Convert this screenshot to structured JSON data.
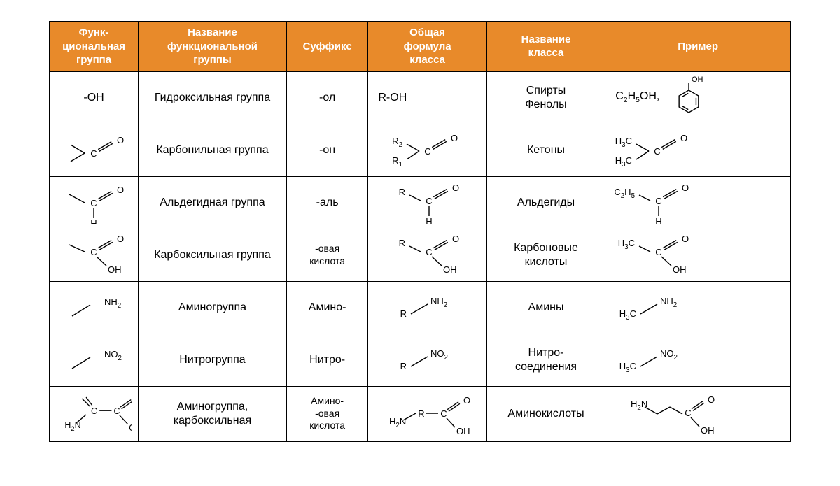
{
  "table": {
    "header_bg": "#e88a2a",
    "header_color": "#ffffff",
    "border_color": "#000000",
    "columns": [
      {
        "label": "Функ-\nциональная\nгруппа",
        "width": "12%"
      },
      {
        "label": "Название\nфункциональной\nгруппы",
        "width": "20%"
      },
      {
        "label": "Суффикс",
        "width": "11%"
      },
      {
        "label": "Общая\nформула\nкласса",
        "width": "16%"
      },
      {
        "label": "Название\nкласса",
        "width": "16%"
      },
      {
        "label": "Пример",
        "width": "25%"
      }
    ],
    "rows": [
      {
        "group": {
          "type": "text",
          "value": "-OH"
        },
        "name": "Гидроксильная группа",
        "suffix": "-ол",
        "formula": {
          "type": "text",
          "value": "R-OH",
          "align": "left"
        },
        "class": "Спирты\nФенолы",
        "example": {
          "type": "phenol",
          "prefix": "C₂H₅OH,"
        }
      },
      {
        "group": {
          "type": "ketone_frag"
        },
        "name": "Карбонильная группа",
        "suffix": "-он",
        "formula": {
          "type": "ketone",
          "r1": "R₂",
          "r2": "R₁"
        },
        "class": "Кетоны",
        "example": {
          "type": "ketone",
          "r1": "H₃C",
          "r2": "H₃C"
        }
      },
      {
        "group": {
          "type": "aldehyde_frag"
        },
        "name": "Альдегидная группа",
        "suffix": "-аль",
        "formula": {
          "type": "aldehyde",
          "r": "R"
        },
        "class": "Альдегиды",
        "example": {
          "type": "aldehyde",
          "r": "C₂H₅"
        }
      },
      {
        "group": {
          "type": "carboxyl_frag"
        },
        "name": "Карбоксильная группа",
        "suffix": "-овая\nкислота",
        "formula": {
          "type": "carboxyl",
          "r": "R"
        },
        "class": "Карбоновые\nкислоты",
        "example": {
          "type": "carboxyl",
          "r": "H₃C"
        }
      },
      {
        "group": {
          "type": "amine_frag"
        },
        "name": "Аминогруппа",
        "suffix": "Амино-",
        "formula": {
          "type": "amine",
          "r": "R"
        },
        "class": "Амины",
        "example": {
          "type": "amine",
          "r": "H₃C"
        }
      },
      {
        "group": {
          "type": "nitro_frag"
        },
        "name": "Нитрогруппа",
        "suffix": "Нитро-",
        "formula": {
          "type": "nitro",
          "r": "R"
        },
        "class": "Нитро-\nсоединения",
        "example": {
          "type": "nitro",
          "r": "H₃C"
        }
      },
      {
        "group": {
          "type": "aminoacid_frag"
        },
        "name": "Аминогруппа,\nкарбоксильная",
        "suffix": "Амино-\n-овая\nкислота",
        "formula": {
          "type": "aminoacid",
          "r": "R"
        },
        "class": "Аминокислоты",
        "example": {
          "type": "aminoacid_ex"
        }
      }
    ]
  },
  "svg": {
    "stroke": "#000000",
    "stroke_width": 1.4,
    "font_family": "Arial",
    "font_size": 13
  }
}
